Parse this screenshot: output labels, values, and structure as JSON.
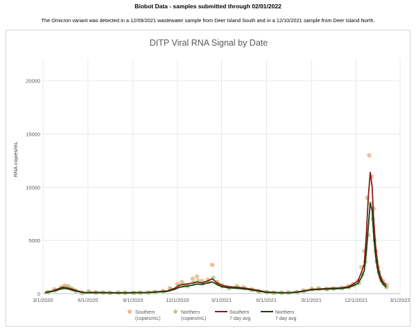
{
  "header": {
    "title": "Biobot Data - samples submitted through 02/01/2022",
    "subtitle": "The Omicron variant was detected in a 12/09/2021 wastewater sample from Deer Island South and in a 12/10/2021 sample from Deer Island North."
  },
  "chart_data": {
    "type": "scatter",
    "title": "DITP Viral RNA Signal by Date",
    "xlabel": "",
    "ylabel": "RNA copies/mL",
    "x_ticks": [
      "3/1/2020",
      "6/1/2020",
      "9/1/2020",
      "12/1/2020",
      "3/1/2021",
      "6/1/2021",
      "9/1/2021",
      "12/1/2021",
      "3/1/2022"
    ],
    "y_ticks": [
      0,
      5000,
      10000,
      15000,
      20000
    ],
    "xlim": [
      "2020-03-01",
      "2022-03-01"
    ],
    "ylim": [
      0,
      22000
    ],
    "grid": true,
    "legend_position": "bottom",
    "colors": {
      "southern_points": "#f0a87a",
      "northern_points": "#9ccf84",
      "southern_avg": "#8b1a10",
      "northern_avg": "#1e3d10",
      "grid": "#e3e3e3"
    },
    "series": [
      {
        "name": "Southern (copies/mL)",
        "kind": "points",
        "x": [
          "2020-03-10",
          "2020-03-24",
          "2020-04-07",
          "2020-04-14",
          "2020-04-21",
          "2020-04-28",
          "2020-05-05",
          "2020-05-19",
          "2020-06-02",
          "2020-06-16",
          "2020-07-01",
          "2020-07-15",
          "2020-08-01",
          "2020-08-15",
          "2020-09-01",
          "2020-09-15",
          "2020-10-01",
          "2020-10-15",
          "2020-11-01",
          "2020-11-15",
          "2020-12-01",
          "2020-12-10",
          "2020-12-20",
          "2021-01-01",
          "2021-01-10",
          "2021-01-20",
          "2021-02-01",
          "2021-02-10",
          "2021-02-20",
          "2021-03-01",
          "2021-03-15",
          "2021-04-01",
          "2021-04-15",
          "2021-05-01",
          "2021-05-15",
          "2021-06-01",
          "2021-06-15",
          "2021-07-01",
          "2021-07-15",
          "2021-08-01",
          "2021-08-15",
          "2021-09-01",
          "2021-09-15",
          "2021-10-01",
          "2021-10-15",
          "2021-11-01",
          "2021-11-15",
          "2021-11-25",
          "2021-12-05",
          "2021-12-12",
          "2021-12-18",
          "2021-12-24",
          "2021-12-28",
          "2022-01-02",
          "2022-01-06",
          "2022-01-10",
          "2022-01-15",
          "2022-01-20",
          "2022-01-25",
          "2022-02-01"
        ],
        "y": [
          150,
          400,
          600,
          750,
          700,
          500,
          300,
          80,
          200,
          100,
          100,
          80,
          100,
          80,
          80,
          100,
          120,
          150,
          250,
          500,
          900,
          1100,
          800,
          1400,
          1600,
          1200,
          1300,
          2700,
          1100,
          800,
          600,
          700,
          600,
          400,
          250,
          150,
          100,
          80,
          100,
          150,
          300,
          450,
          500,
          450,
          500,
          550,
          700,
          900,
          1200,
          2500,
          4000,
          9000,
          13000,
          11000,
          8000,
          4000,
          2500,
          1500,
          1200,
          800
        ]
      },
      {
        "name": "Northern (copies/mL)",
        "kind": "points",
        "x": [
          "2020-03-12",
          "2020-03-26",
          "2020-04-09",
          "2020-04-16",
          "2020-04-23",
          "2020-04-30",
          "2020-05-07",
          "2020-05-21",
          "2020-06-04",
          "2020-06-18",
          "2020-07-03",
          "2020-07-17",
          "2020-08-03",
          "2020-08-17",
          "2020-09-03",
          "2020-09-17",
          "2020-10-03",
          "2020-10-17",
          "2020-11-03",
          "2020-11-17",
          "2020-12-03",
          "2020-12-12",
          "2020-12-22",
          "2021-01-03",
          "2021-01-12",
          "2021-01-22",
          "2021-02-03",
          "2021-02-12",
          "2021-02-22",
          "2021-03-03",
          "2021-03-17",
          "2021-04-03",
          "2021-04-17",
          "2021-05-03",
          "2021-05-17",
          "2021-06-03",
          "2021-06-17",
          "2021-07-03",
          "2021-07-17",
          "2021-08-03",
          "2021-08-17",
          "2021-09-03",
          "2021-09-17",
          "2021-10-03",
          "2021-10-17",
          "2021-11-03",
          "2021-11-17",
          "2021-11-27",
          "2021-12-07",
          "2021-12-14",
          "2021-12-20",
          "2021-12-26",
          "2021-12-30",
          "2022-01-04",
          "2022-01-08",
          "2022-01-12",
          "2022-01-17",
          "2022-01-22",
          "2022-01-27",
          "2022-02-01"
        ],
        "y": [
          120,
          300,
          500,
          650,
          600,
          400,
          250,
          60,
          150,
          80,
          80,
          60,
          80,
          60,
          70,
          80,
          100,
          130,
          200,
          450,
          700,
          900,
          700,
          1000,
          1200,
          1000,
          1100,
          1500,
          900,
          700,
          500,
          600,
          500,
          350,
          200,
          120,
          80,
          70,
          90,
          120,
          250,
          400,
          450,
          400,
          450,
          500,
          600,
          800,
          1000,
          1800,
          3000,
          5500,
          8500,
          7000,
          5000,
          3000,
          2000,
          1200,
          900,
          600
        ]
      },
      {
        "name": "Southern 7 day avg",
        "kind": "line",
        "x": [
          "2020-03-05",
          "2020-03-20",
          "2020-04-01",
          "2020-04-10",
          "2020-04-20",
          "2020-05-01",
          "2020-05-15",
          "2020-05-25",
          "2020-06-15",
          "2020-08-01",
          "2020-10-01",
          "2020-11-10",
          "2020-11-25",
          "2020-12-05",
          "2020-12-20",
          "2021-01-01",
          "2021-01-10",
          "2021-01-20",
          "2021-02-01",
          "2021-02-10",
          "2021-02-20",
          "2021-03-01",
          "2021-03-15",
          "2021-04-01",
          "2021-04-20",
          "2021-05-10",
          "2021-06-01",
          "2021-07-01",
          "2021-07-20",
          "2021-08-10",
          "2021-09-01",
          "2021-09-20",
          "2021-10-10",
          "2021-11-01",
          "2021-11-15",
          "2021-11-25",
          "2021-12-05",
          "2021-12-12",
          "2021-12-18",
          "2021-12-22",
          "2021-12-26",
          "2021-12-30",
          "2022-01-03",
          "2022-01-06",
          "2022-01-10",
          "2022-01-15",
          "2022-01-20",
          "2022-01-25",
          "2022-02-01"
        ],
        "y": [
          100,
          250,
          450,
          600,
          550,
          400,
          200,
          100,
          120,
          80,
          110,
          250,
          500,
          800,
          900,
          1000,
          1100,
          1000,
          1200,
          1400,
          1000,
          800,
          650,
          600,
          500,
          350,
          150,
          90,
          100,
          200,
          400,
          450,
          500,
          550,
          650,
          900,
          1200,
          2000,
          2800,
          5500,
          9000,
          11400,
          10000,
          7000,
          4500,
          2500,
          1600,
          1100,
          800
        ]
      },
      {
        "name": "Northern 7 day avg",
        "kind": "line",
        "x": [
          "2020-03-05",
          "2020-03-20",
          "2020-04-01",
          "2020-04-10",
          "2020-04-20",
          "2020-05-01",
          "2020-05-15",
          "2020-05-25",
          "2020-06-15",
          "2020-08-01",
          "2020-10-01",
          "2020-11-10",
          "2020-11-25",
          "2020-12-05",
          "2020-12-20",
          "2021-01-01",
          "2021-01-10",
          "2021-01-20",
          "2021-02-01",
          "2021-02-10",
          "2021-02-20",
          "2021-03-01",
          "2021-03-15",
          "2021-04-01",
          "2021-04-20",
          "2021-05-10",
          "2021-06-01",
          "2021-07-01",
          "2021-07-20",
          "2021-08-10",
          "2021-09-01",
          "2021-09-20",
          "2021-10-10",
          "2021-11-01",
          "2021-11-15",
          "2021-11-25",
          "2021-12-05",
          "2021-12-12",
          "2021-12-18",
          "2021-12-22",
          "2021-12-26",
          "2021-12-30",
          "2022-01-03",
          "2022-01-06",
          "2022-01-10",
          "2022-01-15",
          "2022-01-20",
          "2022-01-25",
          "2022-02-01"
        ],
        "y": [
          80,
          200,
          350,
          500,
          450,
          320,
          160,
          80,
          90,
          60,
          90,
          200,
          400,
          600,
          700,
          800,
          900,
          850,
          1000,
          1100,
          850,
          650,
          550,
          500,
          420,
          280,
          120,
          70,
          80,
          170,
          350,
          400,
          430,
          480,
          560,
          750,
          950,
          1500,
          2200,
          3800,
          6200,
          8500,
          7800,
          5500,
          3500,
          2000,
          1300,
          900,
          600
        ]
      }
    ]
  }
}
